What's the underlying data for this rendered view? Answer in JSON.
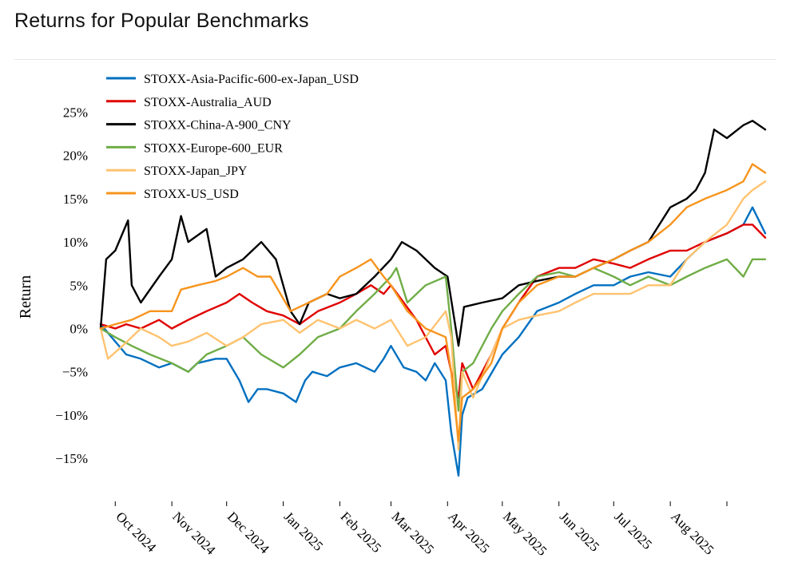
{
  "page": {
    "title": "Returns for Popular Benchmarks"
  },
  "chart_data": {
    "type": "line",
    "title": "Returns for Popular Benchmarks",
    "xlabel": "",
    "ylabel": "Return",
    "ylim": [
      -0.2,
      0.27
    ],
    "y_ticks": [
      0.25,
      0.2,
      0.15,
      0.1,
      0.05,
      0,
      -0.05,
      -0.1,
      -0.15
    ],
    "y_tick_labels": [
      "25%",
      "20%",
      "15%",
      "10%",
      "5%",
      "0%",
      "−5%",
      "−10%",
      "−15%"
    ],
    "x_range": [
      "2024-09-23",
      "2025-09-22"
    ],
    "x_ticks": [
      "2024-10-01",
      "2024-11-01",
      "2024-12-01",
      "2025-01-01",
      "2025-02-01",
      "2025-03-01",
      "2025-04-01",
      "2025-05-01",
      "2025-06-01",
      "2025-07-01",
      "2025-08-01",
      "2025-09-01"
    ],
    "x_tick_labels": [
      "Oct 2024",
      "Nov 2024",
      "Dec 2024",
      "Jan 2025",
      "Feb 2025",
      "Mar 2025",
      "Apr 2025",
      "May 2025",
      "Jun 2025",
      "Jul 2025",
      "Aug 2025",
      ""
    ],
    "legend_position": "top-left",
    "grid": false,
    "series": [
      {
        "name": "STOXX-Asia-Pacific-600-ex-Japan_USD",
        "color": "#0070c0",
        "x": [
          "2024-09-23",
          "2024-10-01",
          "2024-10-07",
          "2024-10-15",
          "2024-10-25",
          "2024-11-01",
          "2024-11-10",
          "2024-11-15",
          "2024-11-25",
          "2024-12-01",
          "2024-12-08",
          "2024-12-13",
          "2024-12-18",
          "2024-12-23",
          "2025-01-01",
          "2025-01-08",
          "2025-01-13",
          "2025-01-17",
          "2025-01-25",
          "2025-02-01",
          "2025-02-10",
          "2025-02-20",
          "2025-02-25",
          "2025-03-01",
          "2025-03-08",
          "2025-03-15",
          "2025-03-20",
          "2025-03-25",
          "2025-03-31",
          "2025-04-03",
          "2025-04-07",
          "2025-04-09",
          "2025-04-12",
          "2025-04-20",
          "2025-05-01",
          "2025-05-10",
          "2025-05-20",
          "2025-06-01",
          "2025-06-10",
          "2025-06-20",
          "2025-07-01",
          "2025-07-10",
          "2025-07-20",
          "2025-08-01",
          "2025-08-10",
          "2025-08-20",
          "2025-09-01",
          "2025-09-10",
          "2025-09-15",
          "2025-09-22"
        ],
        "y": [
          0.005,
          -0.015,
          -0.03,
          -0.035,
          -0.045,
          -0.04,
          -0.05,
          -0.04,
          -0.035,
          -0.035,
          -0.06,
          -0.085,
          -0.07,
          -0.07,
          -0.075,
          -0.085,
          -0.06,
          -0.05,
          -0.055,
          -0.045,
          -0.04,
          -0.05,
          -0.035,
          -0.02,
          -0.045,
          -0.05,
          -0.06,
          -0.04,
          -0.06,
          -0.12,
          -0.17,
          -0.1,
          -0.08,
          -0.07,
          -0.03,
          -0.01,
          0.02,
          0.03,
          0.04,
          0.05,
          0.05,
          0.06,
          0.065,
          0.06,
          0.08,
          0.1,
          0.11,
          0.12,
          0.14,
          0.11
        ]
      },
      {
        "name": "STOXX-Australia_AUD",
        "color": "#e00000",
        "x": [
          "2024-09-23",
          "2024-10-01",
          "2024-10-07",
          "2024-10-15",
          "2024-10-25",
          "2024-11-01",
          "2024-11-10",
          "2024-11-20",
          "2024-12-01",
          "2024-12-08",
          "2024-12-15",
          "2024-12-23",
          "2025-01-01",
          "2025-01-10",
          "2025-01-20",
          "2025-02-01",
          "2025-02-10",
          "2025-02-18",
          "2025-02-25",
          "2025-03-01",
          "2025-03-08",
          "2025-03-15",
          "2025-03-25",
          "2025-03-31",
          "2025-04-03",
          "2025-04-07",
          "2025-04-09",
          "2025-04-15",
          "2025-04-25",
          "2025-05-01",
          "2025-05-10",
          "2025-05-20",
          "2025-06-01",
          "2025-06-10",
          "2025-06-20",
          "2025-07-01",
          "2025-07-10",
          "2025-07-20",
          "2025-08-01",
          "2025-08-10",
          "2025-08-20",
          "2025-09-01",
          "2025-09-10",
          "2025-09-15",
          "2025-09-22"
        ],
        "y": [
          0.005,
          0.0,
          0.005,
          0.0,
          0.01,
          0.0,
          0.01,
          0.02,
          0.03,
          0.04,
          0.03,
          0.02,
          0.015,
          0.005,
          0.02,
          0.03,
          0.04,
          0.05,
          0.04,
          0.05,
          0.03,
          0.01,
          -0.03,
          -0.02,
          -0.05,
          -0.08,
          -0.04,
          -0.07,
          -0.03,
          0.0,
          0.03,
          0.06,
          0.07,
          0.07,
          0.08,
          0.075,
          0.07,
          0.08,
          0.09,
          0.09,
          0.1,
          0.11,
          0.12,
          0.12,
          0.105
        ]
      },
      {
        "name": "STOXX-China-A-900_CNY",
        "color": "#000000",
        "x": [
          "2024-09-23",
          "2024-09-26",
          "2024-10-01",
          "2024-10-08",
          "2024-10-10",
          "2024-10-15",
          "2024-10-25",
          "2024-11-01",
          "2024-11-06",
          "2024-11-10",
          "2024-11-20",
          "2024-11-25",
          "2024-12-01",
          "2024-12-10",
          "2024-12-20",
          "2024-12-28",
          "2025-01-05",
          "2025-01-10",
          "2025-01-15",
          "2025-01-25",
          "2025-02-01",
          "2025-02-10",
          "2025-02-20",
          "2025-03-01",
          "2025-03-07",
          "2025-03-15",
          "2025-03-25",
          "2025-04-01",
          "2025-04-07",
          "2025-04-10",
          "2025-04-20",
          "2025-05-01",
          "2025-05-10",
          "2025-05-20",
          "2025-06-01",
          "2025-06-10",
          "2025-06-20",
          "2025-07-01",
          "2025-07-10",
          "2025-07-20",
          "2025-08-01",
          "2025-08-10",
          "2025-08-15",
          "2025-08-20",
          "2025-08-25",
          "2025-09-01",
          "2025-09-10",
          "2025-09-15",
          "2025-09-22"
        ],
        "y": [
          0.0,
          0.08,
          0.09,
          0.125,
          0.05,
          0.03,
          0.06,
          0.08,
          0.13,
          0.1,
          0.115,
          0.06,
          0.07,
          0.08,
          0.1,
          0.08,
          0.02,
          0.005,
          0.03,
          0.04,
          0.035,
          0.04,
          0.06,
          0.08,
          0.1,
          0.09,
          0.07,
          0.06,
          -0.02,
          0.025,
          0.03,
          0.035,
          0.05,
          0.055,
          0.06,
          0.06,
          0.07,
          0.08,
          0.09,
          0.1,
          0.14,
          0.15,
          0.16,
          0.18,
          0.23,
          0.22,
          0.235,
          0.24,
          0.23
        ]
      },
      {
        "name": "STOXX-Europe-600_EUR",
        "color": "#70ad47",
        "x": [
          "2024-09-23",
          "2024-10-01",
          "2024-10-10",
          "2024-10-20",
          "2024-11-01",
          "2024-11-10",
          "2024-11-20",
          "2024-12-01",
          "2024-12-10",
          "2024-12-20",
          "2025-01-01",
          "2025-01-10",
          "2025-01-20",
          "2025-02-01",
          "2025-02-10",
          "2025-02-20",
          "2025-03-01",
          "2025-03-04",
          "2025-03-10",
          "2025-03-20",
          "2025-03-31",
          "2025-04-03",
          "2025-04-07",
          "2025-04-09",
          "2025-04-15",
          "2025-04-25",
          "2025-05-01",
          "2025-05-10",
          "2025-05-20",
          "2025-06-01",
          "2025-06-10",
          "2025-06-20",
          "2025-07-01",
          "2025-07-10",
          "2025-07-20",
          "2025-08-01",
          "2025-08-10",
          "2025-08-20",
          "2025-09-01",
          "2025-09-10",
          "2025-09-15",
          "2025-09-22"
        ],
        "y": [
          0.0,
          -0.01,
          -0.02,
          -0.03,
          -0.04,
          -0.05,
          -0.03,
          -0.02,
          -0.01,
          -0.03,
          -0.045,
          -0.03,
          -0.01,
          0.0,
          0.02,
          0.04,
          0.06,
          0.07,
          0.03,
          0.05,
          0.06,
          0.0,
          -0.095,
          -0.05,
          -0.04,
          0.0,
          0.02,
          0.04,
          0.06,
          0.065,
          0.06,
          0.07,
          0.06,
          0.05,
          0.06,
          0.05,
          0.06,
          0.07,
          0.08,
          0.06,
          0.08,
          0.08
        ]
      },
      {
        "name": "STOXX-Japan_JPY",
        "color": "#ffc370",
        "x": [
          "2024-09-23",
          "2024-09-27",
          "2024-10-05",
          "2024-10-15",
          "2024-10-25",
          "2024-11-01",
          "2024-11-10",
          "2024-11-20",
          "2024-12-01",
          "2024-12-10",
          "2024-12-20",
          "2025-01-01",
          "2025-01-10",
          "2025-01-20",
          "2025-02-01",
          "2025-02-10",
          "2025-02-20",
          "2025-03-01",
          "2025-03-10",
          "2025-03-20",
          "2025-03-31",
          "2025-04-03",
          "2025-04-07",
          "2025-04-09",
          "2025-04-15",
          "2025-04-25",
          "2025-05-01",
          "2025-05-10",
          "2025-05-20",
          "2025-06-01",
          "2025-06-10",
          "2025-06-20",
          "2025-07-01",
          "2025-07-10",
          "2025-07-20",
          "2025-08-01",
          "2025-08-10",
          "2025-08-20",
          "2025-09-01",
          "2025-09-10",
          "2025-09-15",
          "2025-09-22"
        ],
        "y": [
          0.0,
          -0.035,
          -0.02,
          0.0,
          -0.01,
          -0.02,
          -0.015,
          -0.005,
          -0.02,
          -0.01,
          0.005,
          0.01,
          -0.005,
          0.01,
          0.0,
          0.01,
          0.0,
          0.01,
          -0.02,
          -0.01,
          0.02,
          -0.01,
          -0.14,
          -0.05,
          -0.08,
          -0.03,
          0.0,
          0.01,
          0.015,
          0.02,
          0.03,
          0.04,
          0.04,
          0.04,
          0.05,
          0.05,
          0.08,
          0.1,
          0.12,
          0.15,
          0.16,
          0.17
        ]
      },
      {
        "name": "STOXX-US_USD",
        "color": "#f7941d",
        "x": [
          "2024-09-23",
          "2024-10-01",
          "2024-10-10",
          "2024-10-20",
          "2024-11-01",
          "2024-11-06",
          "2024-11-15",
          "2024-11-25",
          "2024-12-01",
          "2024-12-10",
          "2024-12-18",
          "2024-12-25",
          "2025-01-05",
          "2025-01-15",
          "2025-01-25",
          "2025-02-01",
          "2025-02-10",
          "2025-02-18",
          "2025-02-25",
          "2025-03-01",
          "2025-03-10",
          "2025-03-20",
          "2025-03-31",
          "2025-04-03",
          "2025-04-07",
          "2025-04-09",
          "2025-04-15",
          "2025-04-25",
          "2025-05-01",
          "2025-05-10",
          "2025-05-20",
          "2025-06-01",
          "2025-06-10",
          "2025-06-20",
          "2025-07-01",
          "2025-07-10",
          "2025-07-20",
          "2025-08-01",
          "2025-08-10",
          "2025-08-20",
          "2025-09-01",
          "2025-09-10",
          "2025-09-15",
          "2025-09-22"
        ],
        "y": [
          0.0,
          0.005,
          0.01,
          0.02,
          0.02,
          0.045,
          0.05,
          0.055,
          0.06,
          0.07,
          0.06,
          0.06,
          0.02,
          0.03,
          0.04,
          0.06,
          0.07,
          0.08,
          0.06,
          0.05,
          0.02,
          0.0,
          -0.01,
          -0.05,
          -0.13,
          -0.08,
          -0.07,
          -0.04,
          0.0,
          0.03,
          0.05,
          0.06,
          0.06,
          0.07,
          0.08,
          0.09,
          0.1,
          0.12,
          0.14,
          0.15,
          0.16,
          0.17,
          0.19,
          0.18
        ]
      }
    ]
  }
}
